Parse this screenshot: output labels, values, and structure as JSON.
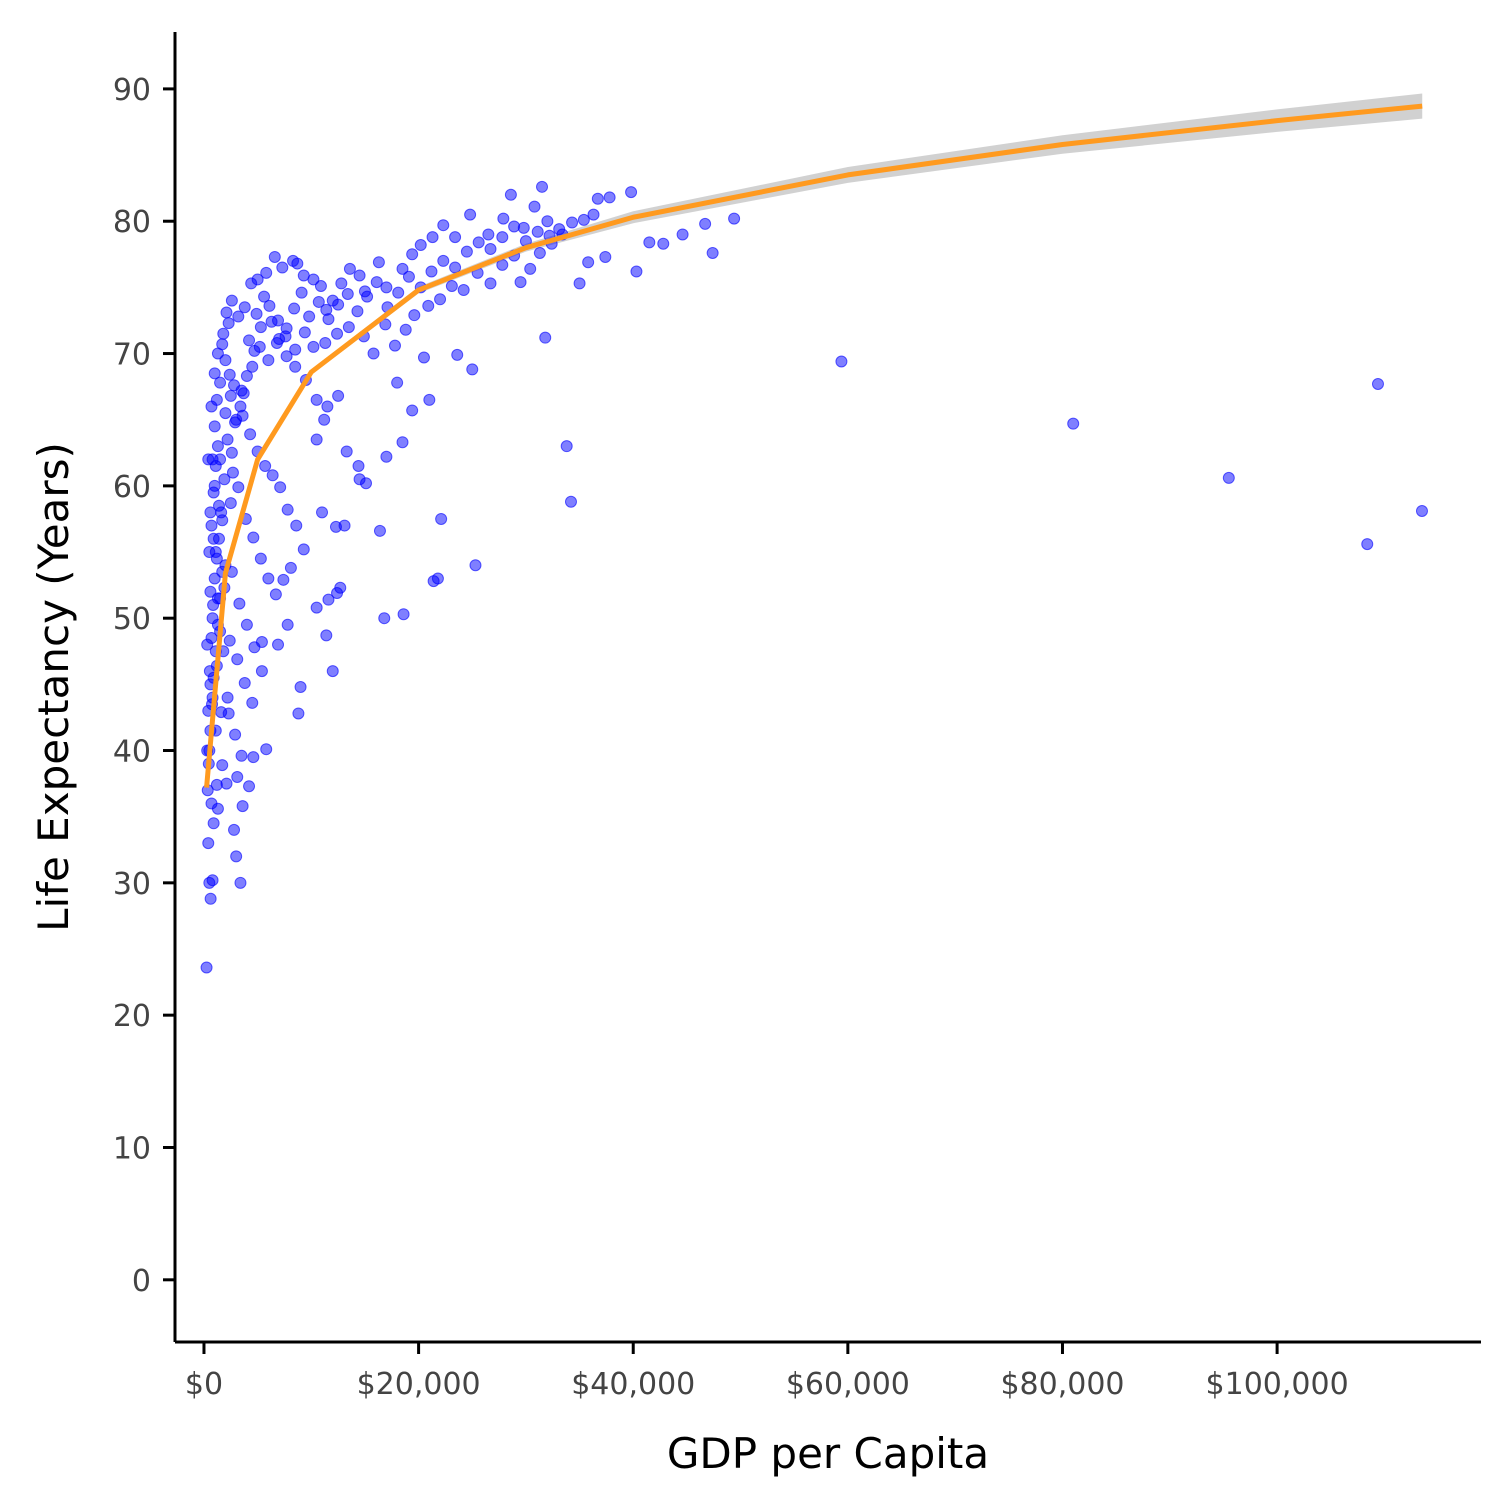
{
  "chart_data": {
    "type": "scatter",
    "title": "",
    "xlabel": "GDP per Capita",
    "ylabel": "Life Expectancy (Years)",
    "xlim": [
      -2700,
      119000
    ],
    "ylim": [
      -4.7,
      94.3
    ],
    "xticks": [
      0,
      20000,
      40000,
      60000,
      80000,
      100000
    ],
    "xtick_labels": [
      "$0",
      "$20,000",
      "$40,000",
      "$60,000",
      "$80,000",
      "$100,000"
    ],
    "yticks": [
      0,
      10,
      20,
      30,
      40,
      50,
      60,
      70,
      80,
      90
    ],
    "ytick_labels": [
      "0",
      "10",
      "20",
      "30",
      "40",
      "50",
      "60",
      "70",
      "80",
      "90"
    ],
    "grid": false,
    "legend": "none",
    "colors": {
      "points": "#0000ff",
      "trend": "#ff9a1f",
      "ribbon": "#cccccc",
      "axis": "#000000"
    },
    "trend_line": {
      "x": [
        241,
        2000,
        5000,
        10000,
        20000,
        30000,
        40000,
        60000,
        80000,
        100000,
        113523
      ],
      "y": [
        37.2,
        53.4,
        62.0,
        68.6,
        74.8,
        78.0,
        80.3,
        83.5,
        85.8,
        87.6,
        88.7
      ],
      "ribbon_halfwidth": [
        0.3,
        0.25,
        0.2,
        0.2,
        0.25,
        0.3,
        0.45,
        0.6,
        0.7,
        0.85,
        0.95
      ]
    },
    "points": [
      [
        241,
        23.6
      ],
      [
        620,
        28.8
      ],
      [
        500,
        30.0
      ],
      [
        800,
        30.2
      ],
      [
        3400,
        30.0
      ],
      [
        3000,
        32.0
      ],
      [
        2800,
        34.0
      ],
      [
        3600,
        35.8
      ],
      [
        4200,
        37.3
      ],
      [
        2100,
        37.5
      ],
      [
        3100,
        38.0
      ],
      [
        4600,
        39.5
      ],
      [
        5800,
        40.1
      ],
      [
        8800,
        42.8
      ],
      [
        9000,
        44.8
      ],
      [
        2300,
        42.8
      ],
      [
        5400,
        48.2
      ],
      [
        6900,
        48.0
      ],
      [
        7800,
        49.5
      ],
      [
        11400,
        48.7
      ],
      [
        12000,
        46.0
      ],
      [
        10500,
        50.8
      ],
      [
        11600,
        51.4
      ],
      [
        12400,
        51.9
      ],
      [
        12700,
        52.3
      ],
      [
        16800,
        50.0
      ],
      [
        18600,
        50.3
      ],
      [
        21400,
        52.8
      ],
      [
        21800,
        53.0
      ],
      [
        25300,
        54.0
      ],
      [
        22100,
        57.5
      ],
      [
        15100,
        60.2
      ],
      [
        14500,
        60.5
      ],
      [
        16400,
        56.6
      ],
      [
        12300,
        56.9
      ],
      [
        13100,
        57.0
      ],
      [
        11000,
        58.0
      ],
      [
        13300,
        62.6
      ],
      [
        14400,
        61.5
      ],
      [
        10500,
        63.5
      ],
      [
        11200,
        65.0
      ],
      [
        17000,
        62.2
      ],
      [
        18500,
        63.3
      ],
      [
        19400,
        65.7
      ],
      [
        21000,
        66.5
      ],
      [
        25000,
        68.8
      ],
      [
        18000,
        67.8
      ],
      [
        20500,
        69.7
      ],
      [
        23600,
        69.9
      ],
      [
        31800,
        71.2
      ],
      [
        33800,
        63.0
      ],
      [
        34200,
        58.8
      ],
      [
        59400,
        69.4
      ],
      [
        81000,
        64.7
      ],
      [
        95500,
        60.6
      ],
      [
        108400,
        55.6
      ],
      [
        109400,
        67.7
      ],
      [
        113500,
        58.1
      ],
      [
        47400,
        77.6
      ],
      [
        46700,
        79.8
      ],
      [
        49400,
        80.2
      ],
      [
        44600,
        79.0
      ],
      [
        42800,
        78.3
      ],
      [
        40300,
        76.2
      ],
      [
        41500,
        78.4
      ],
      [
        39800,
        82.2
      ],
      [
        37800,
        81.8
      ],
      [
        36700,
        81.7
      ],
      [
        37400,
        77.3
      ],
      [
        35800,
        76.9
      ],
      [
        35000,
        75.3
      ],
      [
        33100,
        79.4
      ],
      [
        32000,
        80.0
      ],
      [
        30800,
        81.1
      ],
      [
        31500,
        82.6
      ],
      [
        28600,
        82.0
      ],
      [
        29800,
        79.5
      ],
      [
        27900,
        80.2
      ],
      [
        26500,
        79.0
      ],
      [
        24800,
        80.5
      ],
      [
        23400,
        78.8
      ],
      [
        22300,
        79.7
      ],
      [
        21300,
        78.8
      ],
      [
        20200,
        78.2
      ],
      [
        19400,
        77.5
      ],
      [
        18500,
        76.4
      ],
      [
        17000,
        75.0
      ],
      [
        16300,
        76.9
      ],
      [
        15000,
        74.7
      ],
      [
        14500,
        75.9
      ],
      [
        13600,
        76.4
      ],
      [
        12800,
        75.3
      ],
      [
        12000,
        74.0
      ],
      [
        11400,
        73.3
      ],
      [
        10900,
        75.1
      ],
      [
        10200,
        75.6
      ],
      [
        9300,
        75.9
      ],
      [
        8700,
        76.8
      ],
      [
        8300,
        77.0
      ],
      [
        7300,
        76.5
      ],
      [
        6600,
        77.3
      ],
      [
        5800,
        76.1
      ],
      [
        5000,
        75.6
      ],
      [
        4400,
        75.3
      ],
      [
        3800,
        73.5
      ],
      [
        3200,
        72.8
      ],
      [
        2600,
        74.0
      ],
      [
        2100,
        73.1
      ],
      [
        1700,
        70.7
      ],
      [
        2000,
        69.5
      ],
      [
        2400,
        68.4
      ],
      [
        2800,
        67.6
      ],
      [
        3400,
        66.0
      ],
      [
        4000,
        68.3
      ],
      [
        4700,
        70.2
      ],
      [
        5300,
        72.0
      ],
      [
        6100,
        73.6
      ],
      [
        6900,
        72.5
      ],
      [
        7700,
        71.9
      ],
      [
        8500,
        70.3
      ],
      [
        9400,
        71.6
      ],
      [
        10200,
        70.5
      ],
      [
        11300,
        70.8
      ],
      [
        12400,
        71.5
      ],
      [
        13500,
        72.0
      ],
      [
        14900,
        71.3
      ],
      [
        15800,
        70.0
      ],
      [
        16900,
        72.2
      ],
      [
        17800,
        70.6
      ],
      [
        18800,
        71.8
      ],
      [
        19600,
        72.9
      ],
      [
        20900,
        73.6
      ],
      [
        22000,
        74.1
      ],
      [
        23100,
        75.1
      ],
      [
        24200,
        74.8
      ],
      [
        25500,
        76.1
      ],
      [
        26700,
        75.3
      ],
      [
        27800,
        76.7
      ],
      [
        28900,
        77.4
      ],
      [
        29500,
        75.4
      ],
      [
        30400,
        76.4
      ],
      [
        31300,
        77.6
      ],
      [
        32400,
        78.3
      ],
      [
        33400,
        79.0
      ],
      [
        34300,
        79.9
      ],
      [
        35400,
        80.1
      ],
      [
        36300,
        80.5
      ],
      [
        1000,
        60.0
      ],
      [
        1500,
        62.0
      ],
      [
        2200,
        63.5
      ],
      [
        2900,
        64.8
      ],
      [
        3600,
        65.3
      ],
      [
        4300,
        63.9
      ],
      [
        5000,
        62.6
      ],
      [
        5700,
        61.5
      ],
      [
        6400,
        60.8
      ],
      [
        7100,
        59.9
      ],
      [
        7800,
        58.2
      ],
      [
        8600,
        57.0
      ],
      [
        9300,
        55.2
      ],
      [
        1100,
        55.0
      ],
      [
        1700,
        57.4
      ],
      [
        2500,
        58.7
      ],
      [
        3200,
        59.9
      ],
      [
        3900,
        57.5
      ],
      [
        4600,
        56.1
      ],
      [
        5300,
        54.5
      ],
      [
        6000,
        53.0
      ],
      [
        6700,
        51.8
      ],
      [
        7400,
        52.9
      ],
      [
        8100,
        53.8
      ],
      [
        800,
        50.0
      ],
      [
        1300,
        51.5
      ],
      [
        1900,
        52.3
      ],
      [
        2600,
        53.5
      ],
      [
        3300,
        51.1
      ],
      [
        4000,
        49.5
      ],
      [
        4700,
        47.8
      ],
      [
        5400,
        46.0
      ],
      [
        600,
        45.0
      ],
      [
        1200,
        46.4
      ],
      [
        1800,
        47.5
      ],
      [
        2400,
        48.3
      ],
      [
        3100,
        46.9
      ],
      [
        3800,
        45.1
      ],
      [
        4500,
        43.6
      ],
      [
        500,
        40.0
      ],
      [
        1100,
        41.5
      ],
      [
        1600,
        42.9
      ],
      [
        2200,
        44.0
      ],
      [
        2900,
        41.2
      ],
      [
        3500,
        39.6
      ],
      [
        700,
        36.0
      ],
      [
        1200,
        37.4
      ],
      [
        1700,
        38.9
      ],
      [
        400,
        33.0
      ],
      [
        900,
        34.5
      ],
      [
        1300,
        35.6
      ],
      [
        300,
        48.0
      ],
      [
        600,
        52.0
      ],
      [
        900,
        56.0
      ],
      [
        400,
        62.0
      ],
      [
        700,
        66.0
      ],
      [
        1000,
        68.5
      ],
      [
        1300,
        70.0
      ],
      [
        1800,
        71.5
      ],
      [
        2300,
        72.3
      ],
      [
        300,
        40.0
      ],
      [
        800,
        44.0
      ],
      [
        1500,
        49.0
      ],
      [
        2000,
        54.0
      ],
      [
        2700,
        61.0
      ],
      [
        3500,
        67.2
      ],
      [
        4200,
        71.0
      ],
      [
        4900,
        73.0
      ],
      [
        5600,
        74.3
      ],
      [
        6300,
        72.4
      ],
      [
        7000,
        71.1
      ],
      [
        7700,
        69.8
      ],
      [
        8400,
        73.4
      ],
      [
        9100,
        74.6
      ],
      [
        9800,
        72.8
      ],
      [
        10700,
        73.9
      ],
      [
        11600,
        72.6
      ],
      [
        12500,
        73.7
      ],
      [
        13400,
        74.5
      ],
      [
        14300,
        73.2
      ],
      [
        15200,
        74.3
      ],
      [
        16100,
        75.4
      ],
      [
        17100,
        73.5
      ],
      [
        18100,
        74.6
      ],
      [
        19100,
        75.8
      ],
      [
        20200,
        75.0
      ],
      [
        21200,
        76.2
      ],
      [
        22300,
        77.0
      ],
      [
        23400,
        76.5
      ],
      [
        24500,
        77.7
      ],
      [
        25600,
        78.4
      ],
      [
        26700,
        77.9
      ],
      [
        27800,
        78.8
      ],
      [
        28900,
        79.6
      ],
      [
        30000,
        78.5
      ],
      [
        31100,
        79.2
      ],
      [
        32200,
        78.9
      ],
      [
        1400,
        58.5
      ],
      [
        1900,
        60.5
      ],
      [
        2600,
        62.5
      ],
      [
        3000,
        65.0
      ],
      [
        3700,
        67.0
      ],
      [
        4500,
        69.0
      ],
      [
        5200,
        70.5
      ],
      [
        6000,
        69.5
      ],
      [
        6800,
        70.8
      ],
      [
        7600,
        71.3
      ],
      [
        8500,
        69.0
      ],
      [
        9500,
        68.0
      ],
      [
        10500,
        66.5
      ],
      [
        11500,
        66.0
      ],
      [
        12500,
        66.8
      ],
      [
        600,
        58.0
      ],
      [
        800,
        62.0
      ],
      [
        1000,
        64.5
      ],
      [
        1200,
        66.5
      ],
      [
        1500,
        67.8
      ],
      [
        2000,
        65.5
      ],
      [
        2500,
        66.8
      ],
      [
        500,
        55.0
      ],
      [
        700,
        57.0
      ],
      [
        900,
        59.5
      ],
      [
        1100,
        61.5
      ],
      [
        1300,
        63.0
      ],
      [
        400,
        43.0
      ],
      [
        550,
        46.0
      ],
      [
        700,
        48.5
      ],
      [
        850,
        51.0
      ],
      [
        1000,
        53.0
      ],
      [
        1200,
        54.5
      ],
      [
        1400,
        56.0
      ],
      [
        1600,
        58.0
      ],
      [
        350,
        37.0
      ],
      [
        450,
        39.0
      ],
      [
        600,
        41.5
      ],
      [
        750,
        43.5
      ],
      [
        900,
        45.5
      ],
      [
        1100,
        47.5
      ],
      [
        1300,
        49.5
      ],
      [
        1500,
        51.5
      ],
      [
        1700,
        53.5
      ]
    ]
  }
}
